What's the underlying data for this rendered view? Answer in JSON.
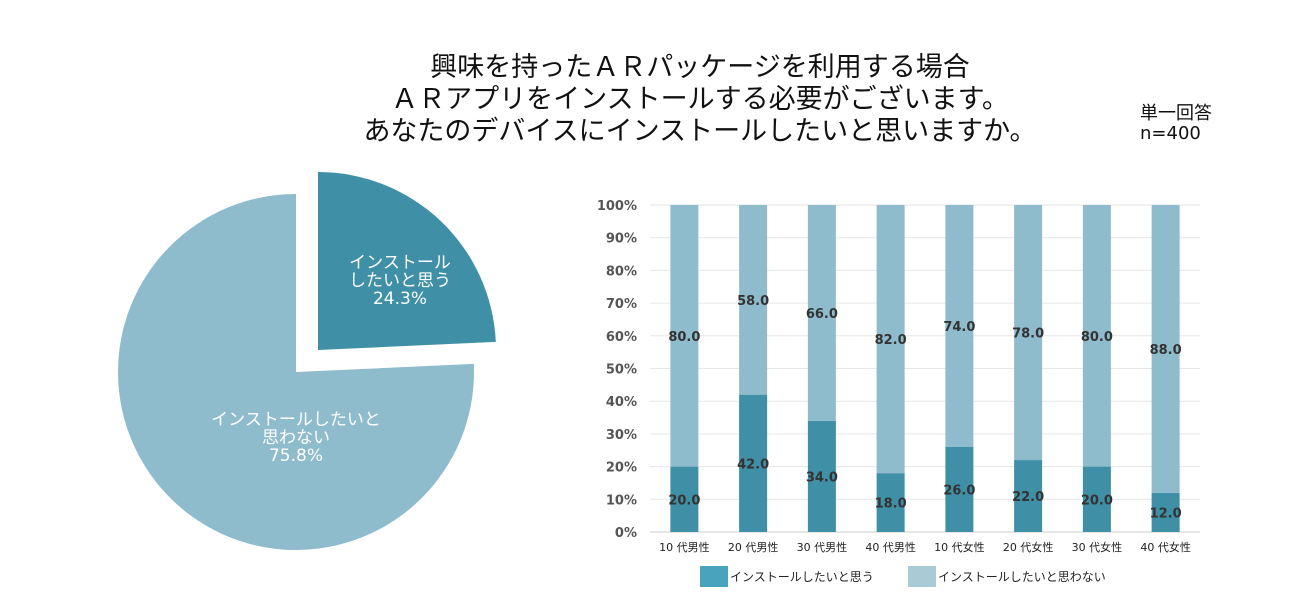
{
  "title_lines": [
    "興味を持ったＡＲパッケージを利用する場合",
    "ＡＲアプリをインストールする必要がございます。",
    "あなたのデバイスにインストールしたいと思いますか。"
  ],
  "response_type": "単一回答",
  "sample_size": "n=400",
  "colors": {
    "yes": "#3f8fa6",
    "no": "#8fbccc",
    "legend_yes": "#4aa3bd",
    "legend_no": "#a8cbd6"
  },
  "chart_data": [
    {
      "type": "pie",
      "slices": [
        {
          "label_lines": [
            "インストール",
            "したいと思う"
          ],
          "value": 24.3,
          "value_label": "24.3%",
          "exploded": true
        },
        {
          "label_lines": [
            "インストールしたいと",
            "思わない"
          ],
          "value": 75.8,
          "value_label": "75.8%",
          "exploded": false
        }
      ]
    },
    {
      "type": "bar",
      "stacked": true,
      "categories": [
        "10 代男性",
        "20 代男性",
        "30 代男性",
        "40 代男性",
        "10 代女性",
        "20 代女性",
        "30 代女性",
        "40 代女性"
      ],
      "series": [
        {
          "name": "インストールしたいと思う",
          "values": [
            20.0,
            42.0,
            34.0,
            18.0,
            26.0,
            22.0,
            20.0,
            12.0
          ]
        },
        {
          "name": "インストールしたいと思わない",
          "values": [
            80.0,
            58.0,
            66.0,
            82.0,
            74.0,
            78.0,
            80.0,
            88.0
          ]
        }
      ],
      "ylim": [
        0,
        100
      ],
      "yticks": [
        "0%",
        "10%",
        "20%",
        "30%",
        "40%",
        "50%",
        "60%",
        "70%",
        "80%",
        "90%",
        "100%"
      ],
      "grid": true,
      "legend_position": "bottom"
    }
  ]
}
